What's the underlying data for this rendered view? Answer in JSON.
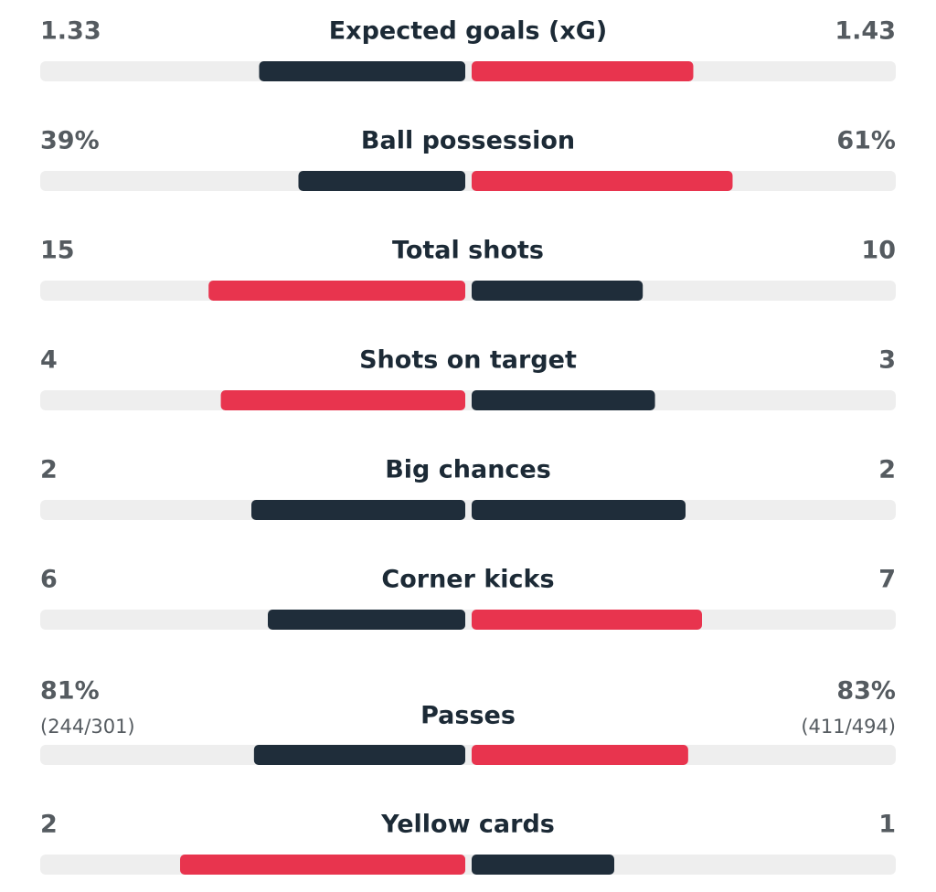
{
  "colors": {
    "leader": "#e8344e",
    "other": "#1f2d3a",
    "track": "#eeeeee"
  },
  "stats": [
    {
      "name": "Expected goals (xG)",
      "home": 1.33,
      "away": 1.43
    },
    {
      "name": "Ball possession",
      "home": {
        "value": 39,
        "label": "39%"
      },
      "away": {
        "value": 61,
        "label": "61%"
      }
    },
    {
      "name": "Total shots",
      "home": 15,
      "away": 10
    },
    {
      "name": "Shots on target",
      "home": 4,
      "away": 3
    },
    {
      "name": "Big chances",
      "home": 2,
      "away": 2
    },
    {
      "name": "Corner kicks",
      "home": 6,
      "away": 7
    },
    {
      "name": "Passes",
      "home": {
        "value": 81,
        "label": "81%"
      },
      "away": {
        "value": 83,
        "label": "83%"
      },
      "home_detail": "(244/301)",
      "away_detail": "(411/494)"
    },
    {
      "name": "Yellow cards",
      "home": 2,
      "away": 1
    }
  ]
}
